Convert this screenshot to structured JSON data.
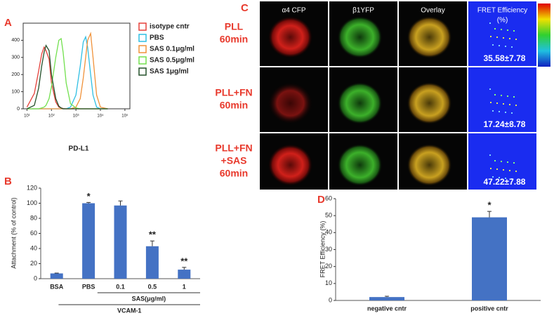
{
  "chart_data": [
    {
      "type": "line",
      "label": "A",
      "xlabel": "PD-L1",
      "log_x": true,
      "xlim": [
        7,
        160000
      ],
      "xticks": [
        {
          "value": 10,
          "label": "10¹"
        },
        {
          "value": 100,
          "label": "10²"
        },
        {
          "value": 1000,
          "label": "10³"
        },
        {
          "value": 10000,
          "label": "10⁴"
        },
        {
          "value": 100000,
          "label": "10⁵"
        }
      ],
      "ylim": [
        0,
        500
      ],
      "yticks": [
        0,
        100,
        200,
        300,
        400
      ],
      "x": [
        10,
        20,
        30,
        40,
        50,
        60,
        80,
        100,
        150,
        200,
        250,
        300,
        400,
        600,
        1000,
        1500,
        2000,
        2500,
        3000,
        4000,
        5000,
        7000,
        10000,
        20000
      ],
      "series": [
        {
          "name": "isotype cntr",
          "color": "#e5403a",
          "values": [
            10,
            90,
            220,
            320,
            360,
            340,
            290,
            150,
            40,
            10,
            5,
            2,
            0,
            0,
            0,
            0,
            0,
            0,
            0,
            0,
            0,
            0,
            0,
            0
          ]
        },
        {
          "name": "PBS",
          "color": "#2fbfe3",
          "values": [
            0,
            0,
            0,
            0,
            0,
            0,
            0,
            0,
            0,
            0,
            0,
            0,
            0,
            10,
            80,
            250,
            390,
            420,
            360,
            200,
            80,
            10,
            0,
            0
          ]
        },
        {
          "name": "SAS 0.1μg/ml",
          "color": "#f0923a",
          "values": [
            0,
            0,
            0,
            0,
            0,
            0,
            0,
            0,
            0,
            0,
            0,
            0,
            0,
            0,
            10,
            60,
            180,
            300,
            400,
            440,
            300,
            80,
            10,
            0
          ]
        },
        {
          "name": "SAS 0.5μg/ml",
          "color": "#72e04e",
          "values": [
            0,
            0,
            0,
            5,
            10,
            20,
            60,
            130,
            300,
            400,
            410,
            330,
            150,
            30,
            5,
            0,
            0,
            0,
            0,
            0,
            0,
            0,
            0,
            0
          ]
        },
        {
          "name": "SAS 1μg/ml",
          "color": "#24502a",
          "values": [
            0,
            20,
            120,
            250,
            330,
            370,
            340,
            200,
            60,
            15,
            5,
            0,
            0,
            0,
            0,
            0,
            0,
            0,
            0,
            0,
            0,
            0,
            0,
            0
          ]
        }
      ]
    },
    {
      "type": "bar",
      "label": "B",
      "ylabel": "Attachment (% of control)",
      "color": "#4472c4",
      "categories": [
        "BSA",
        "PBS",
        "0.1",
        "0.5",
        "1"
      ],
      "values": [
        7,
        100,
        97,
        43,
        12
      ],
      "errors": [
        0.5,
        1,
        6,
        7,
        3
      ],
      "significance": [
        null,
        "*",
        null,
        "**",
        "**"
      ],
      "x_group_labels": [
        "SAS(μg/ml)",
        "VCAM-1"
      ],
      "ylim": [
        0,
        120
      ],
      "yticks": [
        0,
        20,
        40,
        60,
        80,
        100,
        120
      ]
    },
    {
      "type": "bar",
      "label": "D",
      "ylabel": "FRET Efficiency (%)",
      "color": "#4472c4",
      "categories": [
        "negative cntr",
        "positive cntr"
      ],
      "values": [
        2,
        49
      ],
      "errors": [
        0.5,
        3.5
      ],
      "significance": [
        null,
        "*"
      ],
      "ylim": [
        0,
        60
      ],
      "yticks": [
        0,
        10,
        20,
        30,
        40,
        50,
        60
      ]
    }
  ],
  "panel_c": {
    "label": "C",
    "columns": [
      [
        "α4 CFP"
      ],
      [
        "β1YFP"
      ],
      [
        "Overlay"
      ],
      [
        "FRET Efficiency",
        "(%)"
      ]
    ],
    "rows": [
      {
        "label": [
          "PLL",
          "60min"
        ],
        "value": "35.58±7.78"
      },
      {
        "label": [
          "PLL+FN",
          "60min"
        ],
        "value": "17.24±8.78"
      },
      {
        "label": [
          "PLL+FN",
          "+SAS",
          "60min"
        ],
        "value": "47.22±7.88"
      }
    ]
  }
}
